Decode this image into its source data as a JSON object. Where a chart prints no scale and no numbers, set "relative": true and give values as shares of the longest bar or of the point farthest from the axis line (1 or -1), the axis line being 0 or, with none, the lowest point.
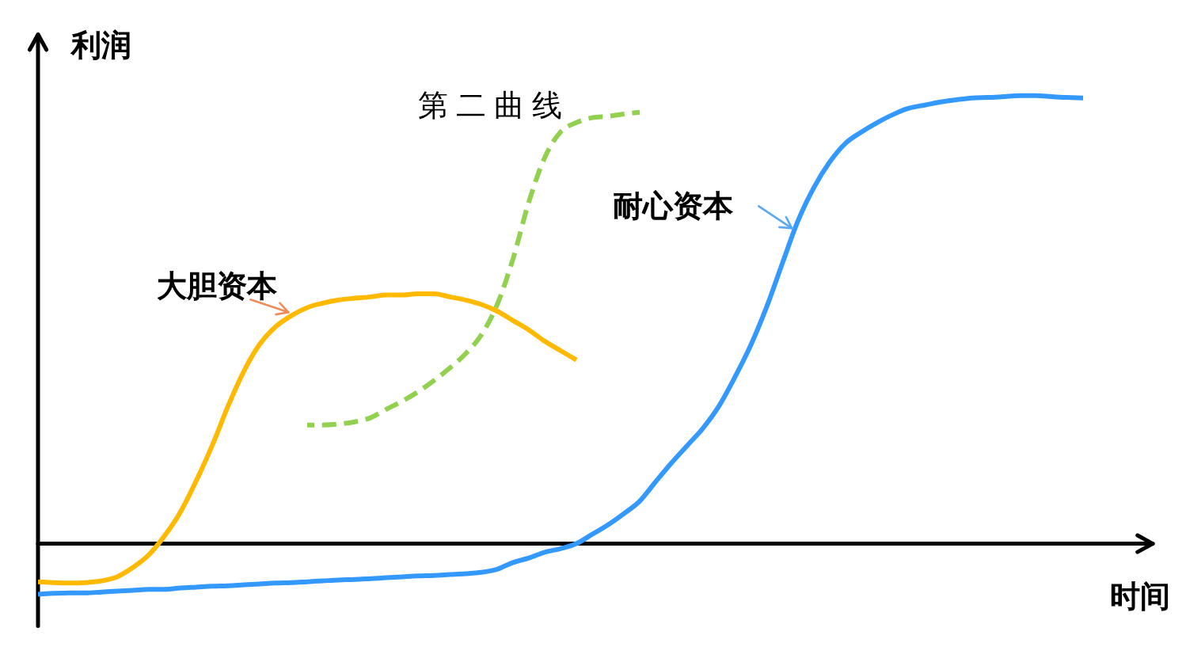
{
  "chart_data": {
    "type": "line",
    "xlabel": "时间",
    "ylabel": "利润",
    "relative": true,
    "marker": "none",
    "line_style": "solid",
    "grid": false,
    "categories": [
      null,
      null,
      null,
      null,
      null,
      null,
      null,
      null,
      null,
      null,
      null,
      null,
      null,
      null,
      null,
      null,
      null,
      null,
      null,
      null,
      null,
      null,
      null,
      null,
      null,
      null,
      null,
      null,
      null,
      null,
      null,
      null,
      null,
      null,
      null,
      null,
      null,
      null,
      null,
      null,
      null,
      null,
      null,
      null,
      null,
      null,
      null,
      null,
      null,
      null,
      null,
      null,
      null,
      null,
      null,
      null,
      null,
      null,
      null,
      null,
      null,
      null,
      null,
      null,
      null,
      null,
      null,
      null,
      null,
      null,
      null
    ],
    "series": [
      {
        "name": "大胆资本",
        "color": "#ffb900",
        "values": [
          -0.085,
          -0.087,
          -0.088,
          -0.087,
          -0.083,
          -0.074,
          -0.053,
          -0.025,
          0.018,
          0.071,
          0.141,
          0.219,
          0.307,
          0.385,
          0.445,
          0.484,
          0.509,
          0.527,
          0.537,
          0.544,
          0.548,
          0.551,
          0.555,
          0.555,
          0.558,
          0.558,
          0.551,
          0.544,
          0.534,
          0.519,
          0.498,
          0.477,
          0.452,
          0.431,
          0.41,
          null,
          null,
          null,
          null,
          null,
          null,
          null,
          null,
          null,
          null,
          null,
          null,
          null,
          null,
          null,
          null,
          null,
          null,
          null,
          null,
          null,
          null,
          null,
          null,
          null,
          null,
          null,
          null,
          null,
          null,
          null,
          null,
          null,
          null,
          null,
          null
        ]
      },
      {
        "name": "第二曲线",
        "color": "#92d050",
        "line_style": "dashed",
        "values": [
          null,
          null,
          null,
          null,
          null,
          null,
          null,
          null,
          null,
          null,
          null,
          null,
          null,
          null,
          null,
          null,
          null,
          0.265,
          0.265,
          0.267,
          0.272,
          0.281,
          0.3,
          0.318,
          0.339,
          0.364,
          0.392,
          0.424,
          0.466,
          0.534,
          0.636,
          0.763,
          0.862,
          0.919,
          0.94,
          0.951,
          0.954,
          0.959,
          0.963,
          null,
          null,
          null,
          null,
          null,
          null,
          null,
          null,
          null,
          null,
          null,
          null,
          null,
          null,
          null,
          null,
          null,
          null,
          null,
          null,
          null,
          null,
          null,
          null,
          null,
          null,
          null,
          null,
          null,
          null,
          null,
          null
        ]
      },
      {
        "name": "耐心资本",
        "color": "#3399ff",
        "values": [
          -0.113,
          -0.111,
          -0.11,
          -0.11,
          -0.108,
          -0.106,
          -0.104,
          -0.102,
          -0.102,
          -0.099,
          -0.097,
          -0.095,
          -0.094,
          -0.092,
          -0.09,
          -0.088,
          -0.087,
          -0.085,
          -0.083,
          -0.081,
          -0.08,
          -0.078,
          -0.076,
          -0.074,
          -0.072,
          -0.071,
          -0.069,
          -0.067,
          -0.064,
          -0.057,
          -0.042,
          -0.032,
          -0.019,
          -0.011,
          0,
          0.021,
          0.042,
          0.067,
          0.095,
          0.138,
          0.18,
          0.219,
          0.258,
          0.307,
          0.371,
          0.442,
          0.527,
          0.625,
          0.721,
          0.795,
          0.852,
          0.894,
          0.919,
          0.94,
          0.958,
          0.972,
          0.979,
          0.986,
          0.991,
          0.995,
          0.996,
          0.998,
          1,
          1,
          0.998,
          0.996,
          0.995,
          null,
          null,
          null,
          null
        ]
      }
    ]
  }
}
